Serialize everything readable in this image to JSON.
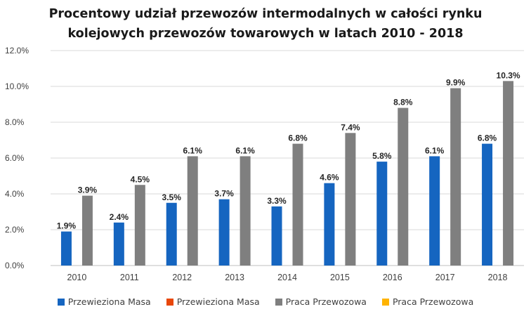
{
  "chart_data": {
    "type": "bar",
    "title_lines": [
      "Procentowy udział przewozów intermodalnych w całości rynku",
      "kolejowych przewozów towarowych w latach 2010 - 2018"
    ],
    "categories": [
      "2010",
      "2011",
      "2012",
      "2013",
      "2014",
      "2015",
      "2016",
      "2017",
      "2018"
    ],
    "series": [
      {
        "name": "Przewieziona Masa",
        "color": "#1565C0",
        "values": [
          1.9,
          2.4,
          3.5,
          3.7,
          3.3,
          4.6,
          5.8,
          6.1,
          6.8
        ],
        "labels": [
          "1.9%",
          "2.4%",
          "3.5%",
          "3.7%",
          "3.3%",
          "4.6%",
          "5.8%",
          "6.1%",
          "6.8%"
        ]
      },
      {
        "name": "Praca Przewozowa",
        "color": "#7F7F7F",
        "values": [
          3.9,
          4.5,
          6.1,
          6.1,
          6.8,
          7.4,
          8.8,
          9.9,
          10.3
        ],
        "labels": [
          "3.9%",
          "4.5%",
          "6.1%",
          "6.1%",
          "6.8%",
          "7.4%",
          "8.8%",
          "9.9%",
          "10.3%"
        ]
      }
    ],
    "ylim": [
      0,
      12
    ],
    "yticks": [
      0,
      2,
      4,
      6,
      8,
      10,
      12
    ],
    "ytick_labels": [
      "0.0%",
      "2.0%",
      "4.0%",
      "6.0%",
      "8.0%",
      "10.0%",
      "12.0%"
    ],
    "grid": true,
    "legend_position": "bottom"
  },
  "legend": [
    {
      "label": "Przewieziona Masa",
      "color": "#1565C0"
    },
    {
      "label": "Przewieziona Masa",
      "color": "#E8470A"
    },
    {
      "label": "Praca Przewozowa",
      "color": "#7F7F7F"
    },
    {
      "label": "Praca Przewozowa",
      "color": "#FFB300"
    }
  ]
}
